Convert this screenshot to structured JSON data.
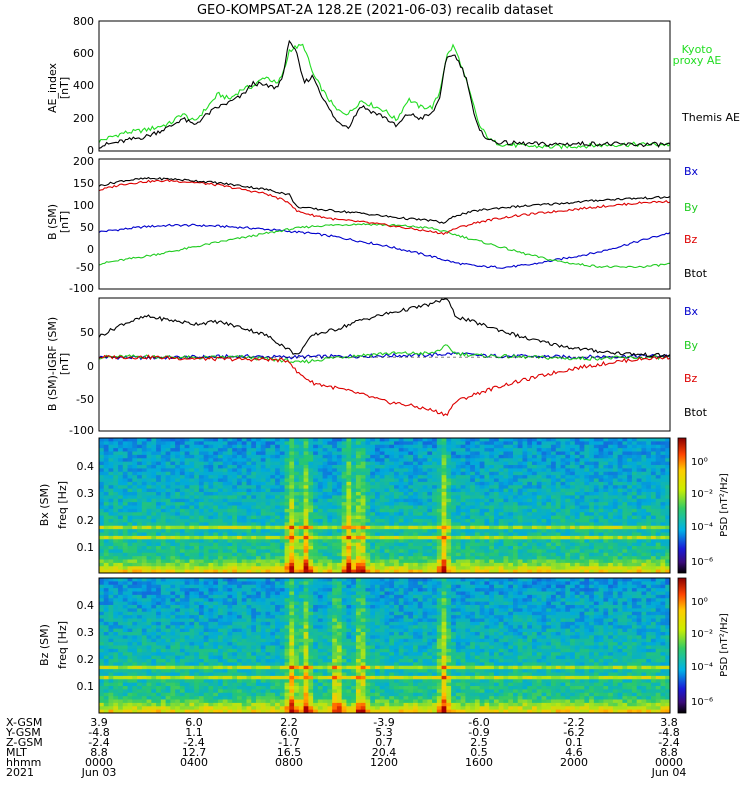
{
  "title": "GEO-KOMPSAT-2A 128.2E (2021-06-03) recalib dataset",
  "panels": {
    "ae": {
      "ylabel": "AE_index",
      "unit": "[nT]",
      "yticks": [
        "0",
        "200",
        "400",
        "600",
        "800"
      ],
      "legend": [
        {
          "text": "Kyoto",
          "color": "#22dd22"
        },
        {
          "text": "proxy AE",
          "color": "#22dd22"
        },
        {
          "text": "Themis AE",
          "color": "#000000"
        }
      ]
    },
    "bsm": {
      "ylabel": "B (SM)",
      "unit": "[nT]",
      "yticks": [
        "-100",
        "-50",
        "0",
        "50",
        "100",
        "150",
        "200"
      ],
      "legend": [
        {
          "text": "Bx",
          "color": "#0000cc"
        },
        {
          "text": "By",
          "color": "#22cc22"
        },
        {
          "text": "Bz",
          "color": "#dd0000"
        },
        {
          "text": "Btot",
          "color": "#000000"
        }
      ]
    },
    "bigrf": {
      "ylabel": "B (SM)-IGRF (SM)",
      "unit": "[nT]",
      "yticks": [
        "-100",
        "-50",
        "0",
        "50"
      ],
      "legend": [
        {
          "text": "Bx",
          "color": "#0000cc"
        },
        {
          "text": "By",
          "color": "#22cc22"
        },
        {
          "text": "Bz",
          "color": "#dd0000"
        },
        {
          "text": "Btot",
          "color": "#000000"
        }
      ]
    },
    "spec_bx": {
      "ylabel": "Bx (SM)",
      "freq_label": "freq [Hz]",
      "yticks": [
        "0.1",
        "0.2",
        "0.3",
        "0.4"
      ],
      "cb_label": "PSD [nT²/Hz]",
      "cb_ticks": [
        "10⁰",
        "10⁻²",
        "10⁻⁴",
        "10⁻⁶"
      ]
    },
    "spec_bz": {
      "ylabel": "Bz (SM)",
      "freq_label": "freq [Hz]",
      "yticks": [
        "0.1",
        "0.2",
        "0.3",
        "0.4"
      ],
      "cb_label": "PSD [nT²/Hz]",
      "cb_ticks": [
        "10⁰",
        "10⁻²",
        "10⁻⁴",
        "10⁻⁶"
      ]
    }
  },
  "xaxis": {
    "rows": [
      {
        "label": "X-GSM",
        "values": [
          "3.9",
          "6.0",
          "2.2",
          "-3.9",
          "-6.0",
          "-2.2",
          "3.8"
        ]
      },
      {
        "label": "Y-GSM",
        "values": [
          "-4.8",
          "1.1",
          "6.0",
          "5.3",
          "-0.9",
          "-6.2",
          "-4.8"
        ]
      },
      {
        "label": "Z-GSM",
        "values": [
          "-2.4",
          "-2.4",
          "-1.7",
          "0.7",
          "2.5",
          "0.1",
          "-2.4"
        ]
      },
      {
        "label": "MLT",
        "values": [
          "8.8",
          "12.7",
          "16.5",
          "20.4",
          "0.5",
          "4.6",
          "8.8"
        ]
      },
      {
        "label": "hhmm",
        "values": [
          "0000",
          "0400",
          "0800",
          "1200",
          "1600",
          "2000",
          "0000"
        ]
      },
      {
        "label": "2021",
        "values": [
          "Jun 03",
          "",
          "",
          "",
          "",
          "",
          "Jun 04"
        ]
      }
    ]
  },
  "chart_data": [
    {
      "type": "line",
      "title": "AE_index",
      "ylabel": "AE_index [nT]",
      "x_unit": "hours UT since 2021-06-03 00:00",
      "xlim": [
        0,
        24
      ],
      "ylim": [
        0,
        800
      ],
      "series": [
        {
          "name": "Kyoto proxy AE",
          "color": "#22dd22",
          "x": [
            0,
            1,
            2,
            3,
            3.5,
            4,
            4.5,
            5,
            5.5,
            6,
            6.5,
            7,
            7.5,
            7.8,
            8,
            8.3,
            8.6,
            9,
            9.5,
            10,
            10.5,
            11,
            11.5,
            12,
            12.5,
            13,
            13.5,
            14,
            14.3,
            14.6,
            14.9,
            15.2,
            15.5,
            15.8,
            16,
            16.5,
            17,
            18,
            19,
            20,
            21,
            22,
            23,
            24
          ],
          "y": [
            60,
            110,
            130,
            170,
            230,
            180,
            260,
            350,
            320,
            380,
            400,
            460,
            410,
            500,
            620,
            640,
            650,
            470,
            350,
            250,
            230,
            310,
            280,
            250,
            190,
            320,
            270,
            270,
            350,
            580,
            650,
            540,
            400,
            250,
            150,
            60,
            40,
            30,
            25,
            30,
            35,
            40,
            40,
            40
          ]
        },
        {
          "name": "Themis AE",
          "color": "#000000",
          "x": [
            0,
            1,
            2,
            3,
            3.5,
            4,
            4.5,
            5,
            5.5,
            6,
            6.5,
            7,
            7.5,
            7.8,
            8,
            8.3,
            8.6,
            9,
            9.5,
            10,
            10.5,
            11,
            11.5,
            12,
            12.5,
            13,
            13.5,
            14,
            14.3,
            14.6,
            14.9,
            15.2,
            15.5,
            15.8,
            16,
            16.5,
            17,
            18,
            19,
            20,
            21,
            22,
            23,
            24
          ],
          "y": [
            30,
            60,
            90,
            150,
            200,
            160,
            220,
            270,
            300,
            340,
            420,
            400,
            390,
            500,
            690,
            600,
            420,
            460,
            300,
            180,
            150,
            280,
            240,
            210,
            150,
            230,
            200,
            230,
            320,
            560,
            600,
            530,
            420,
            200,
            120,
            60,
            50,
            45,
            40,
            45,
            45,
            40,
            40,
            40
          ]
        }
      ]
    },
    {
      "type": "line",
      "title": "B (SM)",
      "ylabel": "B (SM) [nT]",
      "xlim": [
        0,
        24
      ],
      "ylim": [
        -100,
        200
      ],
      "series": [
        {
          "name": "Bx",
          "color": "#0000cc",
          "x": [
            0,
            1,
            2,
            3,
            4,
            5,
            6,
            7,
            8,
            9,
            10,
            11,
            12,
            13,
            14,
            15,
            16,
            17,
            18,
            19,
            20,
            21,
            22,
            23,
            24
          ],
          "y": [
            32,
            38,
            44,
            47,
            47,
            45,
            42,
            38,
            33,
            28,
            20,
            10,
            0,
            -12,
            -25,
            -40,
            -48,
            -50,
            -45,
            -35,
            -25,
            -15,
            0,
            15,
            30
          ]
        },
        {
          "name": "By",
          "color": "#22cc22",
          "x": [
            0,
            1,
            2,
            3,
            4,
            5,
            6,
            7,
            8,
            9,
            10,
            11,
            12,
            13,
            14,
            15,
            16,
            17,
            18,
            19,
            20,
            21,
            22,
            23,
            24
          ],
          "y": [
            -42,
            -33,
            -24,
            -14,
            -3,
            8,
            18,
            28,
            38,
            45,
            48,
            50,
            48,
            45,
            40,
            25,
            10,
            -5,
            -20,
            -33,
            -42,
            -48,
            -50,
            -48,
            -42
          ]
        },
        {
          "name": "Bz",
          "color": "#dd0000",
          "x": [
            0,
            1,
            2,
            3,
            4,
            5,
            6,
            7,
            8,
            8.3,
            9,
            10,
            11,
            12,
            13,
            14,
            14.5,
            15,
            16,
            17,
            18,
            19,
            20,
            21,
            22,
            23,
            24
          ],
          "y": [
            128,
            142,
            148,
            150,
            146,
            140,
            130,
            120,
            100,
            80,
            70,
            60,
            55,
            48,
            40,
            32,
            28,
            40,
            55,
            65,
            72,
            78,
            84,
            90,
            95,
            100,
            102
          ]
        },
        {
          "name": "Btot",
          "color": "#000000",
          "x": [
            0,
            1,
            2,
            3,
            4,
            5,
            6,
            7,
            8,
            8.3,
            9,
            10,
            11,
            12,
            13,
            14,
            14.5,
            15,
            16,
            17,
            18,
            19,
            20,
            21,
            22,
            23,
            24
          ],
          "y": [
            138,
            150,
            155,
            154,
            150,
            145,
            138,
            130,
            118,
            90,
            85,
            80,
            75,
            68,
            62,
            58,
            52,
            70,
            82,
            88,
            92,
            96,
            100,
            105,
            108,
            110,
            112
          ]
        }
      ]
    },
    {
      "type": "line",
      "title": "B (SM)-IGRF (SM)",
      "ylabel": "B (SM)-IGRF (SM) [nT]",
      "xlim": [
        0,
        24
      ],
      "ylim": [
        -100,
        80
      ],
      "series": [
        {
          "name": "Bx",
          "color": "#0000cc",
          "x": [
            0,
            2,
            4,
            6,
            8,
            10,
            12,
            14,
            15,
            16,
            18,
            20,
            22,
            24
          ],
          "y": [
            0,
            -1,
            0,
            1,
            0,
            1,
            2,
            3,
            5,
            2,
            1,
            0,
            1,
            2
          ]
        },
        {
          "name": "By",
          "color": "#22cc22",
          "x": [
            0,
            2,
            4,
            6,
            8,
            8.3,
            10,
            12,
            14,
            14.6,
            15,
            16,
            18,
            20,
            22,
            24
          ],
          "y": [
            0,
            1,
            -1,
            0,
            -5,
            -8,
            0,
            5,
            5,
            15,
            5,
            2,
            0,
            -2,
            -1,
            0
          ]
        },
        {
          "name": "Bz",
          "color": "#dd0000",
          "x": [
            0,
            2,
            4,
            6,
            7,
            8,
            8.3,
            9,
            10,
            11,
            12,
            13,
            14,
            14.6,
            15,
            16,
            17,
            18,
            19,
            20,
            21,
            22,
            23,
            24
          ],
          "y": [
            0,
            0,
            -2,
            -3,
            -3,
            -5,
            -20,
            -35,
            -42,
            -50,
            -60,
            -65,
            -72,
            -78,
            -60,
            -48,
            -38,
            -30,
            -22,
            -15,
            -10,
            -5,
            -2,
            0
          ]
        },
        {
          "name": "Btot",
          "color": "#000000",
          "x": [
            0,
            1,
            2,
            3,
            4,
            5,
            6,
            7,
            8,
            8.3,
            9,
            10,
            11,
            12,
            13,
            14,
            14.6,
            15,
            16,
            17,
            18,
            19,
            20,
            21,
            22,
            23,
            24
          ],
          "y": [
            28,
            45,
            55,
            50,
            45,
            48,
            40,
            30,
            10,
            2,
            30,
            38,
            50,
            58,
            65,
            72,
            80,
            55,
            45,
            35,
            25,
            18,
            12,
            8,
            5,
            3,
            2
          ]
        }
      ]
    },
    {
      "type": "heatmap",
      "title": "Bx (SM)",
      "ylabel": "freq [Hz]",
      "ylim": [
        0,
        0.5
      ],
      "colorbar": "PSD [nT²/Hz]",
      "bright_bands_hz": [
        0.13,
        0.17
      ],
      "burst_hours": [
        8.1,
        8.7,
        10.5,
        11.0,
        14.5
      ]
    },
    {
      "type": "heatmap",
      "title": "Bz (SM)",
      "ylabel": "freq [Hz]",
      "ylim": [
        0,
        0.5
      ],
      "colorbar": "PSD [nT²/Hz]",
      "bright_bands_hz": [
        0.13,
        0.17
      ],
      "burst_hours": [
        8.1,
        8.7,
        10.0,
        11.0,
        14.5
      ]
    }
  ]
}
